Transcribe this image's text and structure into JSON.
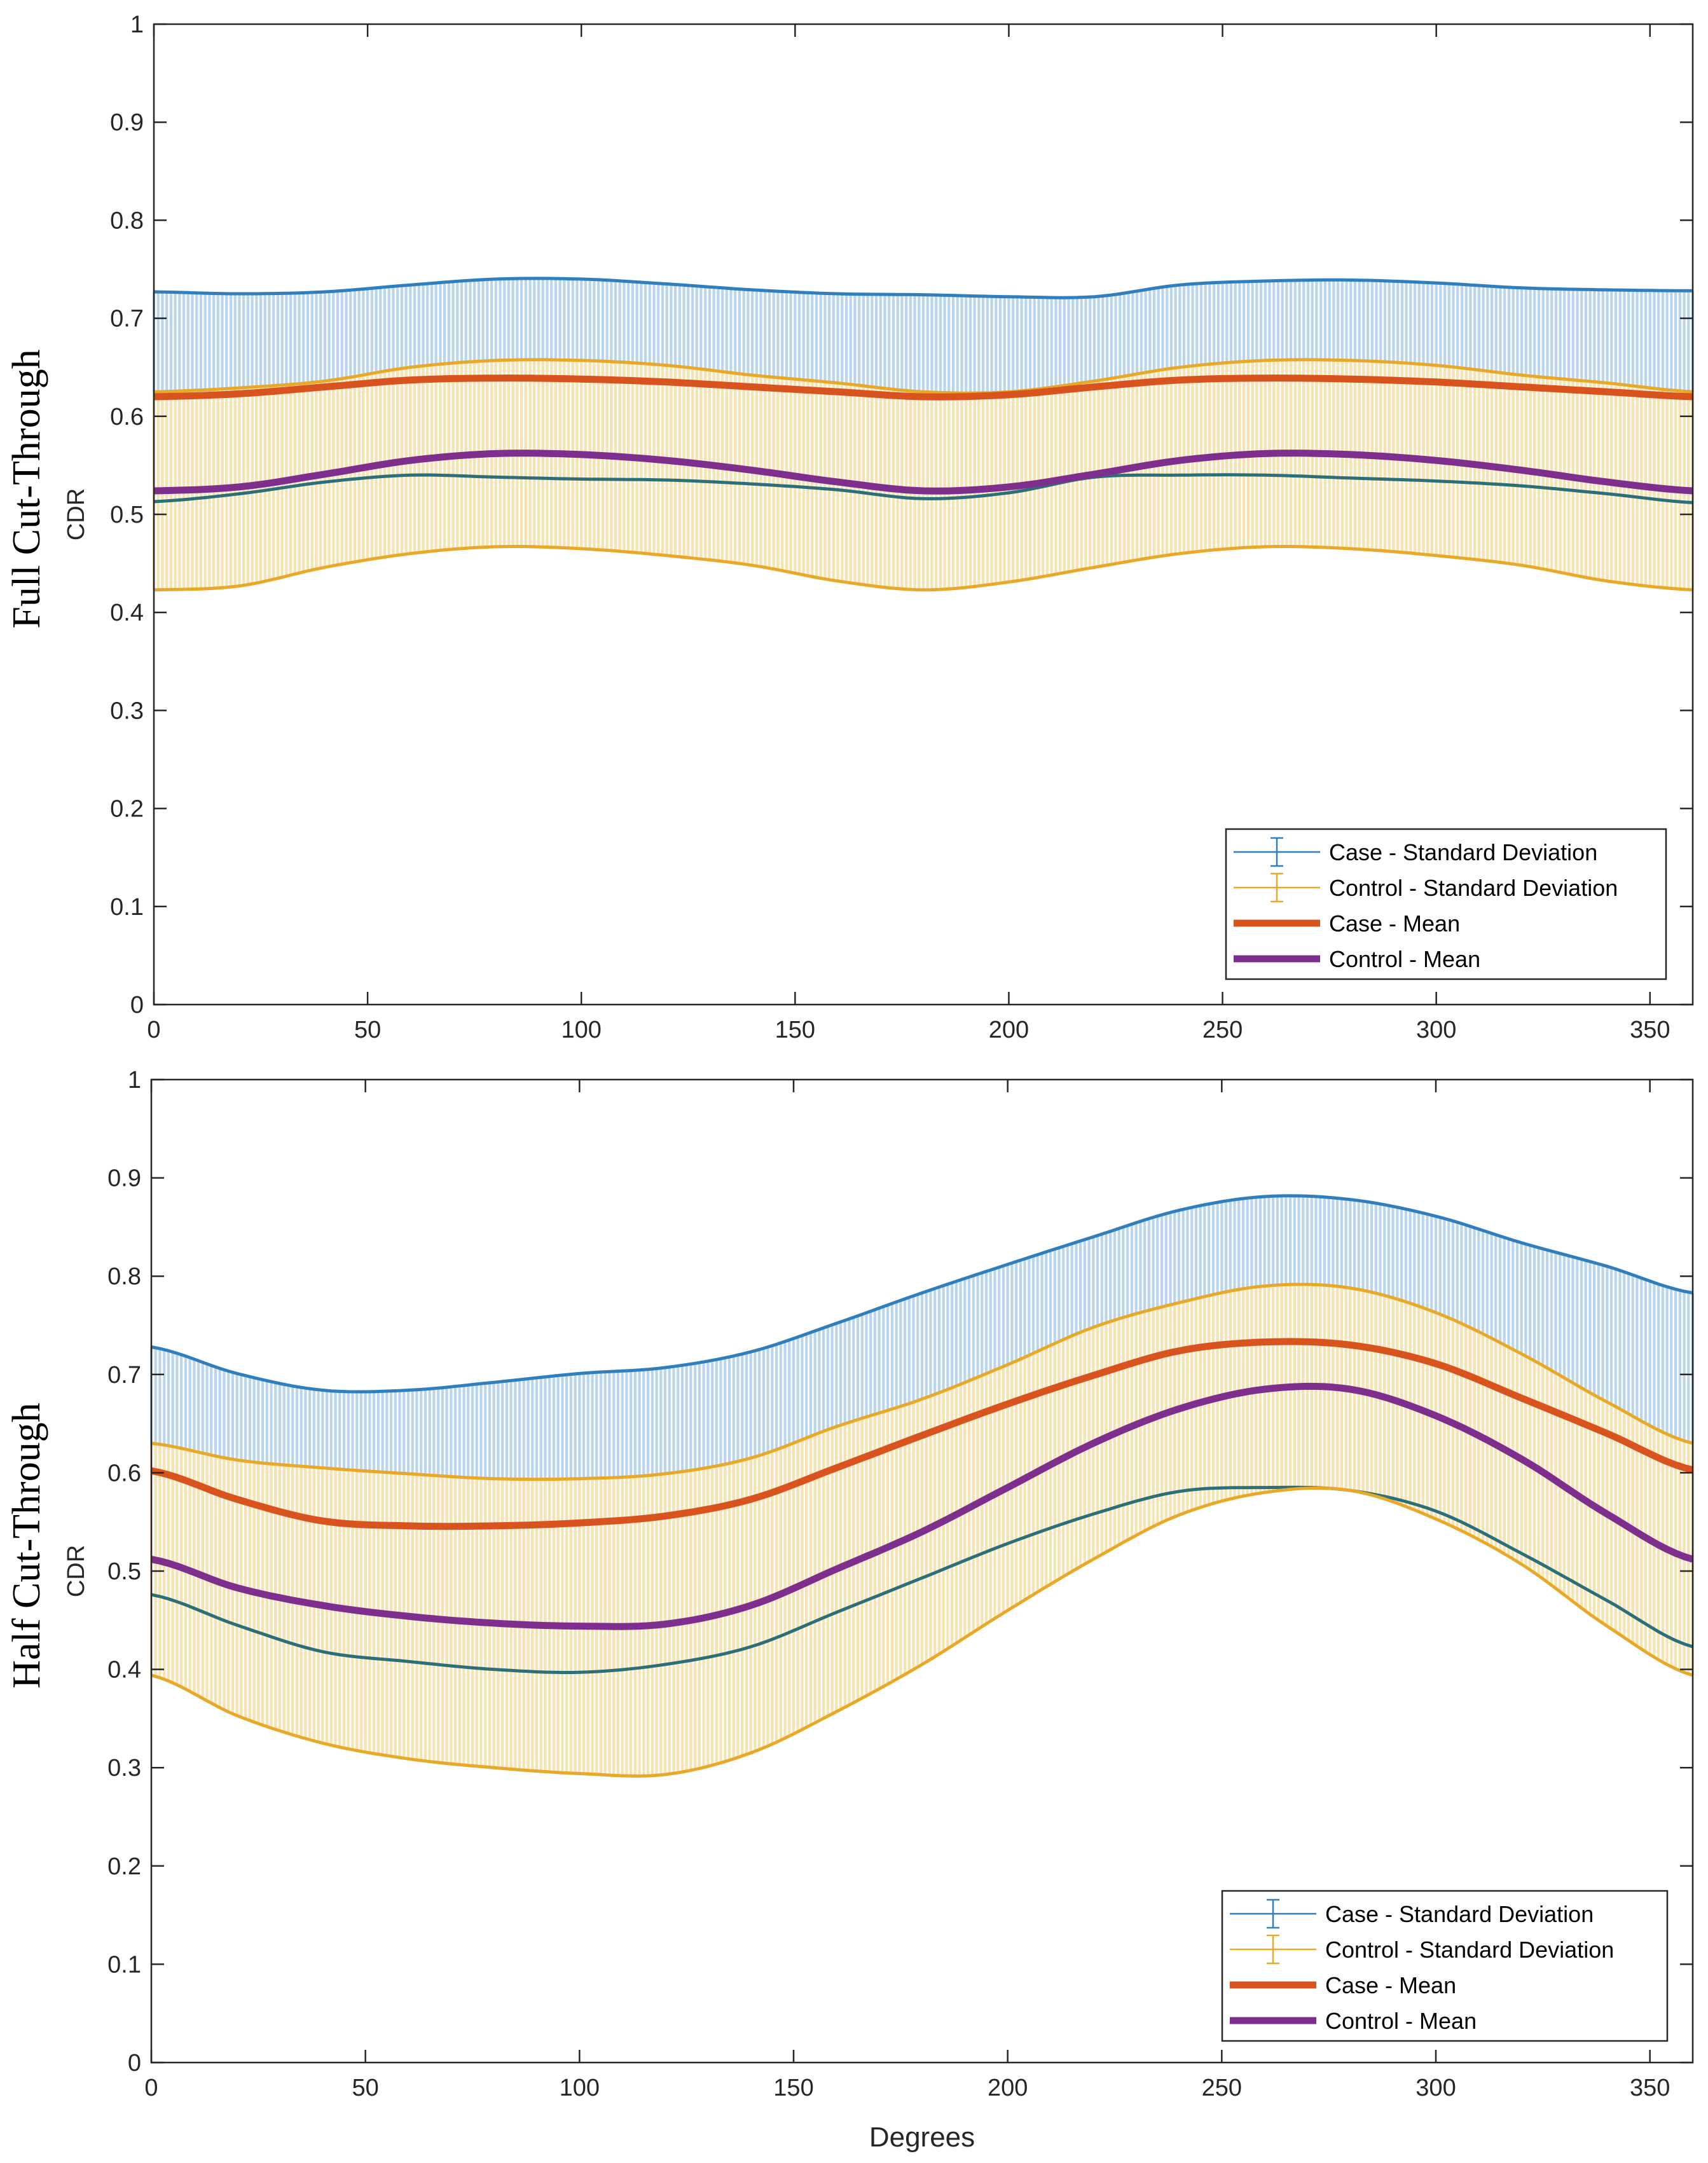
{
  "chart_data": [
    {
      "type": "line",
      "panel_title": "Full Cut-Through",
      "ylabel": "CDR",
      "xlabel": "",
      "xlim": [
        0,
        360
      ],
      "ylim": [
        0,
        1
      ],
      "xticks": [
        "0",
        "50",
        "100",
        "150",
        "200",
        "250",
        "300",
        "350"
      ],
      "yticks": [
        "0",
        "0.1",
        "0.2",
        "0.3",
        "0.4",
        "0.5",
        "0.6",
        "0.7",
        "0.8",
        "0.9",
        "1"
      ],
      "legend": [
        "Case - Standard Deviation",
        "Control - Standard Deviation",
        "Case - Mean",
        "Control - Mean"
      ],
      "legend_position": "bottom-right",
      "x": [
        0,
        20,
        40,
        60,
        80,
        100,
        120,
        140,
        160,
        180,
        200,
        220,
        240,
        260,
        280,
        300,
        320,
        340,
        360
      ],
      "series": [
        {
          "name": "Case - Mean",
          "values": [
            0.62,
            0.623,
            0.63,
            0.637,
            0.639,
            0.638,
            0.635,
            0.63,
            0.625,
            0.62,
            0.622,
            0.63,
            0.637,
            0.639,
            0.638,
            0.635,
            0.63,
            0.625,
            0.62
          ]
        },
        {
          "name": "Case - SD",
          "values": [
            0.107,
            0.102,
            0.097,
            0.097,
            0.101,
            0.102,
            0.1,
            0.099,
            0.1,
            0.104,
            0.1,
            0.092,
            0.097,
            0.099,
            0.101,
            0.101,
            0.101,
            0.104,
            0.108
          ]
        },
        {
          "name": "Control - Mean",
          "values": [
            0.524,
            0.528,
            0.541,
            0.555,
            0.562,
            0.561,
            0.555,
            0.545,
            0.533,
            0.524,
            0.528,
            0.541,
            0.555,
            0.562,
            0.561,
            0.555,
            0.545,
            0.533,
            0.524
          ]
        },
        {
          "name": "Control - SD",
          "values": [
            0.101,
            0.101,
            0.095,
            0.095,
            0.095,
            0.096,
            0.097,
            0.097,
            0.101,
            0.101,
            0.097,
            0.095,
            0.095,
            0.095,
            0.096,
            0.097,
            0.097,
            0.101,
            0.101
          ]
        }
      ]
    },
    {
      "type": "line",
      "panel_title": "Half Cut-Through",
      "ylabel": "CDR",
      "xlabel": "Degrees",
      "xlim": [
        0,
        360
      ],
      "ylim": [
        0,
        1
      ],
      "xticks": [
        "0",
        "50",
        "100",
        "150",
        "200",
        "250",
        "300",
        "350"
      ],
      "yticks": [
        "0",
        "0.1",
        "0.2",
        "0.3",
        "0.4",
        "0.5",
        "0.6",
        "0.7",
        "0.8",
        "0.9",
        "1"
      ],
      "legend": [
        "Case - Standard Deviation",
        "Control - Standard Deviation",
        "Case - Mean",
        "Control - Mean"
      ],
      "legend_position": "bottom-right",
      "x": [
        0,
        20,
        40,
        60,
        80,
        100,
        120,
        140,
        160,
        180,
        200,
        220,
        240,
        260,
        280,
        300,
        320,
        340,
        360
      ],
      "series": [
        {
          "name": "Case - Mean",
          "values": [
            0.602,
            0.573,
            0.551,
            0.546,
            0.546,
            0.549,
            0.556,
            0.573,
            0.605,
            0.638,
            0.67,
            0.699,
            0.724,
            0.733,
            0.73,
            0.711,
            0.676,
            0.64,
            0.603
          ]
        },
        {
          "name": "Case - SD",
          "values": [
            0.126,
            0.128,
            0.133,
            0.138,
            0.146,
            0.152,
            0.151,
            0.15,
            0.147,
            0.145,
            0.142,
            0.141,
            0.143,
            0.148,
            0.148,
            0.15,
            0.158,
            0.17,
            0.18
          ]
        },
        {
          "name": "Control - Mean",
          "values": [
            0.512,
            0.483,
            0.465,
            0.454,
            0.447,
            0.444,
            0.446,
            0.465,
            0.502,
            0.54,
            0.585,
            0.63,
            0.665,
            0.685,
            0.685,
            0.658,
            0.614,
            0.558,
            0.512
          ]
        },
        {
          "name": "Control - SD",
          "values": [
            0.118,
            0.13,
            0.14,
            0.145,
            0.147,
            0.15,
            0.153,
            0.15,
            0.145,
            0.135,
            0.125,
            0.118,
            0.108,
            0.105,
            0.103,
            0.105,
            0.107,
            0.114,
            0.118
          ]
        }
      ]
    }
  ]
}
